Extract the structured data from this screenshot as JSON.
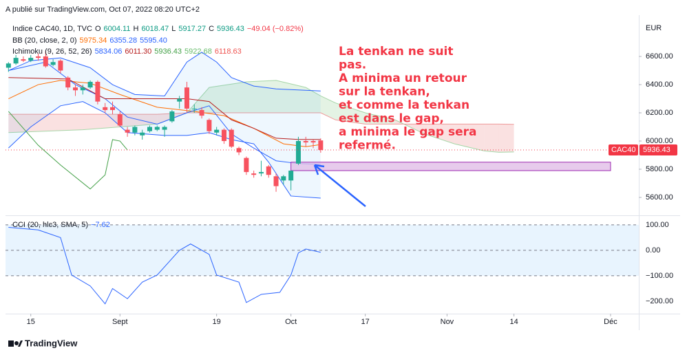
{
  "header": "A publié sur TradingView.com, Oct 07, 2022 08:20 UTC+2",
  "footer": "TradingView",
  "chart_data": {
    "type": "candlestick",
    "currency": "EUR",
    "legend": {
      "main": [
        "Indice CAC40, 1D, TVC",
        "O",
        "6004.11",
        "H",
        "6018.47",
        "L",
        "5917.27",
        "C",
        "5936.43",
        "−49.04 (−0.82%)"
      ],
      "bb": [
        "BB (20, close, 2, 0)",
        "5975.34",
        "6355.28",
        "5595.40"
      ],
      "ichimoku": [
        "Ichimoku (9, 26, 52, 26)",
        "5834.06",
        "6011.30",
        "5936.43",
        "5922.68",
        "6118.63"
      ],
      "cci": [
        "CCI (20, hlc3, SMA, 5)",
        "−7.62"
      ]
    },
    "symbol": "CAC40",
    "last_price": {
      "value": 5936.43,
      "label": "5936.43"
    },
    "annotation": [
      "La tenkan ne suit",
      "pas.",
      "A minima un retour",
      "sur la tenkan,",
      "et comme la tenkan",
      "est dans le gap,",
      "a minima le gap sera",
      "refermé."
    ],
    "up_color": "#22ab94",
    "down_color": "#f7525f",
    "x": [
      0,
      1,
      2,
      3,
      4,
      5,
      6,
      7,
      8,
      9,
      10,
      11,
      12,
      13,
      14,
      15,
      16,
      17,
      18,
      19,
      20,
      21,
      22,
      23,
      24,
      25,
      26,
      27,
      28,
      29,
      30,
      31,
      32,
      33,
      34,
      35,
      36,
      37,
      38,
      39,
      40,
      41,
      42
    ],
    "open": [
      6520,
      6550,
      6580,
      6570,
      6600,
      6600,
      6540,
      6570,
      6450,
      6380,
      6360,
      6380,
      6420,
      6240,
      6240,
      6190,
      6080,
      6060,
      6040,
      6070,
      6080,
      6080,
      6140,
      6280,
      6380,
      6230,
      6220,
      6150,
      6060,
      6080,
      6080,
      5950,
      5880,
      5770,
      5770,
      5820,
      5750,
      5720,
      5720,
      5840,
      6000,
      6000,
      6004.11
    ],
    "high": [
      6560,
      6610,
      6600,
      6610,
      6620,
      6640,
      6580,
      6580,
      6460,
      6400,
      6400,
      6430,
      6430,
      6270,
      6280,
      6210,
      6100,
      6110,
      6080,
      6110,
      6110,
      6110,
      6220,
      6320,
      6420,
      6260,
      6240,
      6160,
      6100,
      6090,
      6090,
      5960,
      5890,
      5790,
      5860,
      5830,
      5770,
      5760,
      5790,
      6030,
      6030,
      6010,
      6018.47
    ],
    "low": [
      6490,
      6540,
      6560,
      6560,
      6570,
      6520,
      6530,
      6480,
      6360,
      6320,
      6330,
      6370,
      6260,
      6200,
      6190,
      6100,
      6030,
      6040,
      6010,
      6060,
      6070,
      6030,
      6130,
      6230,
      6200,
      6200,
      6160,
      6050,
      6040,
      5980,
      5950,
      5900,
      5760,
      5740,
      5750,
      5740,
      5640,
      5690,
      5650,
      5830,
      5960,
      5950,
      5917.27
    ],
    "close": [
      6550,
      6590,
      6570,
      6590,
      6590,
      6530,
      6560,
      6500,
      6380,
      6360,
      6380,
      6420,
      6280,
      6220,
      6220,
      6110,
      6060,
      6100,
      6060,
      6100,
      6100,
      6100,
      6210,
      6300,
      6230,
      6230,
      6180,
      6070,
      6080,
      6000,
      5960,
      5920,
      5780,
      5760,
      5780,
      5760,
      5680,
      5750,
      5790,
      6000,
      5990,
      5990,
      5936.43
    ],
    "lines": [
      {
        "name": "BB upper",
        "color": "#2962ff",
        "x": [
          0,
          3,
          7,
          11,
          14,
          17,
          21,
          24,
          26,
          28,
          30,
          33,
          36,
          42
        ],
        "values": [
          6500,
          6570,
          6590,
          6520,
          6400,
          6330,
          6320,
          6560,
          6630,
          6560,
          6450,
          6390,
          6370,
          6355.28
        ]
      },
      {
        "name": "BB basis",
        "color": "#ff6d00",
        "x": [
          0,
          4,
          7,
          11,
          15,
          20,
          25,
          29,
          33,
          37,
          40,
          42
        ],
        "values": [
          6300,
          6400,
          6430,
          6410,
          6330,
          6240,
          6210,
          6180,
          6090,
          5980,
          5960,
          5975.34
        ]
      },
      {
        "name": "BB lower",
        "color": "#2962ff",
        "x": [
          0,
          3,
          7,
          10,
          13,
          16,
          21,
          24,
          27,
          30,
          33,
          35,
          38,
          42
        ],
        "values": [
          5950,
          6100,
          6250,
          6280,
          6200,
          6060,
          6040,
          6040,
          6060,
          6010,
          5980,
          5850,
          5610,
          5595.4
        ]
      },
      {
        "name": "Tenkan",
        "color": "#2962ff",
        "x": [
          0,
          5,
          9,
          13,
          16,
          20,
          24,
          27,
          30,
          33,
          36,
          39,
          42
        ],
        "values": [
          6500,
          6560,
          6400,
          6300,
          6170,
          6120,
          6200,
          6250,
          6050,
          5950,
          5860,
          5840,
          5834.06
        ]
      },
      {
        "name": "Kijun",
        "color": "#b71c1c",
        "x": [
          0,
          8,
          13,
          16,
          24,
          27,
          30,
          33,
          36,
          39,
          42
        ],
        "values": [
          6450,
          6440,
          6300,
          6300,
          6300,
          6280,
          6150,
          6090,
          6020,
          6011.3,
          6011.3
        ]
      },
      {
        "name": "Lagging",
        "color": "#43a047",
        "x": [
          0,
          4,
          7,
          11,
          13,
          14,
          15,
          16
        ],
        "values": [
          6210,
          5970,
          5830,
          5660,
          5760,
          6010,
          6000,
          5936.43
        ]
      }
    ],
    "cloud": {
      "x": [
        0,
        10,
        20,
        24,
        27,
        32,
        36,
        40,
        42,
        44,
        48,
        52,
        56,
        60,
        64,
        66,
        68
      ],
      "span_a": [
        6060,
        6080,
        6120,
        6200,
        6380,
        6420,
        6430,
        6380,
        6320,
        6270,
        6200,
        6150,
        6050,
        5980,
        5930,
        5920,
        5922.68
      ],
      "span_b": [
        6190,
        6190,
        6190,
        6200,
        6200,
        6200,
        6200,
        6200,
        6200,
        6150,
        6120,
        6120,
        6120,
        6120,
        6120,
        6120,
        6118.63
      ],
      "up_color": "#a5d6a7",
      "down_color": "#ef9a9a"
    },
    "xlim": [
      -0.4,
      84.8
    ],
    "xticks": [
      {
        "value": 3,
        "label": "15"
      },
      {
        "value": 15,
        "label": "Sept"
      },
      {
        "value": 28,
        "label": "19"
      },
      {
        "value": 38,
        "label": "Oct"
      },
      {
        "value": 48,
        "label": "17"
      },
      {
        "value": 59,
        "label": "Nov"
      },
      {
        "value": 68,
        "label": "14"
      },
      {
        "value": 81,
        "label": "Déc"
      }
    ],
    "ylim": [
      5478,
      6854
    ],
    "yticks": [
      {
        "value": 5600,
        "label": "5600.00"
      },
      {
        "value": 5800,
        "label": "5800.00"
      },
      {
        "value": 6000,
        "label": "6000.00"
      },
      {
        "value": 6200,
        "label": "6200.00"
      },
      {
        "value": 6400,
        "label": "6400.00"
      },
      {
        "value": 6600,
        "label": "6600.00"
      }
    ],
    "gap": [
      5790,
      5850,
      38,
      81
    ],
    "cci": {
      "name": "CCI",
      "color": "#2962ff",
      "x": [
        0,
        4,
        7,
        8.5,
        11,
        13,
        14,
        16,
        18,
        20,
        23,
        24.5,
        27,
        28,
        31,
        32,
        34,
        36.5,
        38,
        39,
        40,
        42
      ],
      "values": [
        90,
        80,
        50,
        -97,
        -140,
        -210,
        -150,
        -190,
        -125,
        -97,
        0,
        25,
        -16,
        -97,
        -125,
        -205,
        -173,
        -165,
        -97,
        -10,
        5,
        -7.62
      ],
      "ylim": [
        -246,
        132
      ],
      "yticks": [
        {
          "value": 100,
          "label": "100.00"
        },
        {
          "value": 0,
          "label": "0.00"
        },
        {
          "value": -100,
          "label": "−100.00"
        },
        {
          "value": -200,
          "label": "−200.00"
        }
      ],
      "band": [
        -100,
        100
      ]
    }
  }
}
